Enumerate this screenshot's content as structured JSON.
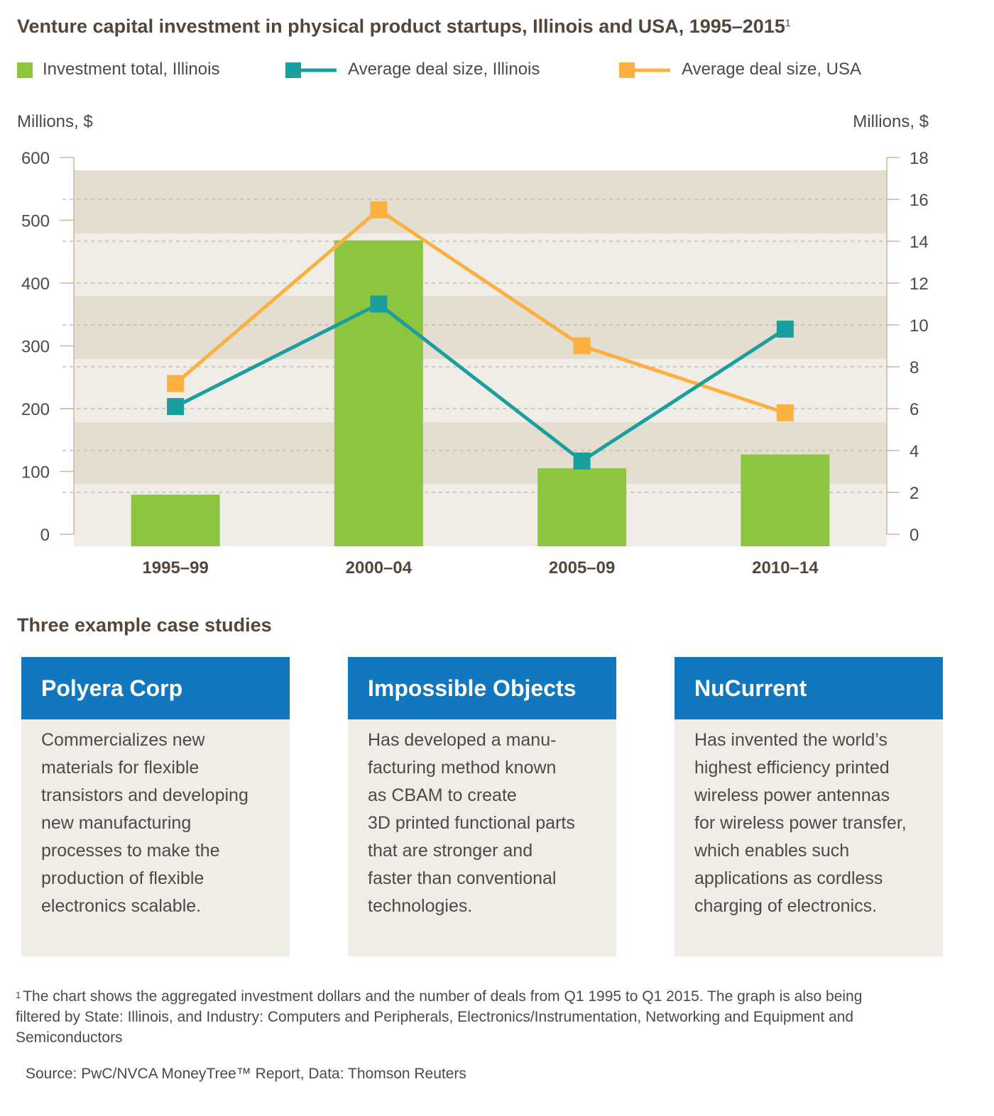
{
  "title": "Venture capital investment in physical product startups, Illinois and USA, 1995–2015",
  "title_footnote_mark": "1",
  "colors": {
    "green": "#8cc63f",
    "teal": "#1a9e9e",
    "orange": "#fbb040",
    "band_dark": "#e4ded1",
    "band_light": "#f0ede6",
    "card_header": "#1177bf"
  },
  "legend": [
    {
      "label": "Investment total, Illinois",
      "kind": "bar",
      "color": "#8cc63f"
    },
    {
      "label": "Average deal size, Illinois",
      "kind": "line",
      "color": "#1a9e9e"
    },
    {
      "label": "Average deal size, USA",
      "kind": "line",
      "color": "#fbb040"
    }
  ],
  "chart_data": {
    "type": "bar+line",
    "categories": [
      "1995–99",
      "2000–04",
      "2005–09",
      "2010–14"
    ],
    "y_left": {
      "label": "Millions, $",
      "min": 0,
      "max": 600,
      "ticks": [
        0,
        100,
        200,
        300,
        400,
        500,
        600
      ]
    },
    "y_right": {
      "label": "Millions, $",
      "min": 0,
      "max": 18,
      "ticks": [
        0,
        2,
        4,
        6,
        8,
        10,
        12,
        14,
        16,
        18
      ]
    },
    "series": [
      {
        "name": "Investment total, Illinois",
        "type": "bar",
        "axis": "left",
        "values": [
          63,
          468,
          105,
          127
        ]
      },
      {
        "name": "Average deal size, Illinois",
        "type": "line",
        "axis": "right",
        "values": [
          6.1,
          11.0,
          3.5,
          9.8
        ]
      },
      {
        "name": "Average deal size, USA",
        "type": "line",
        "axis": "right",
        "values": [
          7.2,
          15.5,
          9.0,
          5.8
        ]
      }
    ],
    "grid": "dashed at right-axis ticks",
    "legend_position": "top"
  },
  "case_studies": {
    "title": "Three example case studies",
    "cards": [
      {
        "name": "Polyera Corp",
        "text": "Commercializes new\nmaterials for flexible\ntransistors and developing\nnew manufacturing\nprocesses to make the\nproduction of flexible\nelectronics scalable."
      },
      {
        "name": "Impossible Objects",
        "text": "Has developed a manu-\nfacturing method known\nas CBAM to create\n3D printed functional parts\nthat are stronger and\nfaster than conventional\ntechnologies."
      },
      {
        "name": "NuCurrent",
        "text": "Has invented the world’s\nhighest efficiency printed\nwireless power antennas\nfor wireless power transfer,\nwhich enables such\napplications as cordless\ncharging of electronics."
      }
    ]
  },
  "footnote": {
    "mark": "1",
    "text": "The chart shows the aggregated investment dollars and the number of deals from Q1 1995 to Q1 2015. The graph is also being filtered by State: Illinois, and Industry: Computers and Peripherals, Electronics/Instrumentation, Networking and Equipment and Semiconductors"
  },
  "source": "Source: PwC/NVCA MoneyTree™ Report, Data: Thomson Reuters"
}
